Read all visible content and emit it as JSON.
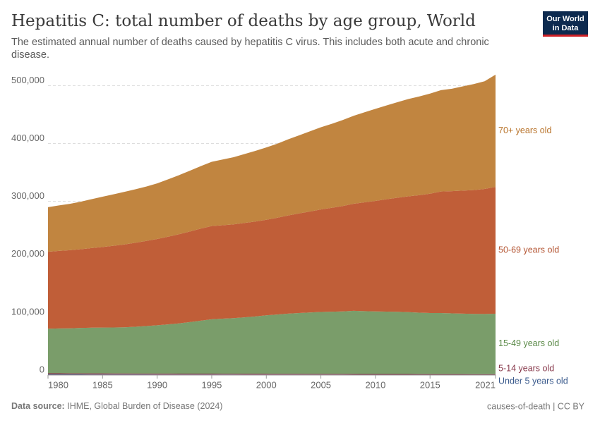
{
  "chart_data": {
    "type": "stacked-area",
    "title": "Hepatitis C: total number of deaths by age group, World",
    "subtitle": "The estimated annual number of deaths caused by hepatitis C virus. This includes both acute and chronic disease.",
    "logo": [
      "Our World",
      "in Data"
    ],
    "source_label": "Data source:",
    "source": "IHME, Global Burden of Disease (2024)",
    "license": "causes-of-death | CC BY",
    "x": [
      1980,
      1981,
      1982,
      1983,
      1984,
      1985,
      1986,
      1987,
      1988,
      1989,
      1990,
      1991,
      1992,
      1993,
      1994,
      1995,
      1996,
      1997,
      1998,
      1999,
      2000,
      2001,
      2002,
      2003,
      2004,
      2005,
      2006,
      2007,
      2008,
      2009,
      2010,
      2011,
      2012,
      2013,
      2014,
      2015,
      2016,
      2017,
      2018,
      2019,
      2020,
      2021
    ],
    "xlim": [
      1980,
      2021
    ],
    "xticks": [
      1980,
      1985,
      1990,
      1995,
      2000,
      2005,
      2010,
      2015,
      2021
    ],
    "ylim": [
      0,
      520000
    ],
    "yticks": [
      0,
      {
        "value": 100000,
        "label": "100,000"
      },
      {
        "value": 200000,
        "label": "200,000"
      },
      {
        "value": 300000,
        "label": "300,000"
      },
      {
        "value": 400000,
        "label": "400,000"
      },
      {
        "value": 500000,
        "label": "500,000"
      }
    ],
    "grid": true,
    "series": [
      {
        "name": "Under 5 years old",
        "color": "#4c6a9c",
        "label_color": "#3a5a8c",
        "values": [
          1200,
          1200,
          1150,
          1150,
          1100,
          1100,
          1050,
          1050,
          1000,
          1000,
          950,
          950,
          900,
          900,
          900,
          850,
          850,
          850,
          800,
          800,
          800,
          750,
          750,
          750,
          700,
          700,
          700,
          700,
          650,
          650,
          650,
          650,
          600,
          600,
          600,
          600,
          550,
          550,
          550,
          550,
          500,
          500
        ]
      },
      {
        "name": "5-14 years old",
        "color": "#8a3a52",
        "label_color": "#883a4c",
        "values": [
          1800,
          1800,
          1780,
          1760,
          1740,
          1720,
          1700,
          1680,
          1660,
          1640,
          1620,
          1600,
          1580,
          1560,
          1540,
          1520,
          1500,
          1480,
          1460,
          1440,
          1420,
          1400,
          1380,
          1360,
          1340,
          1320,
          1300,
          1280,
          1260,
          1240,
          1220,
          1200,
          1180,
          1160,
          1140,
          1120,
          1100,
          1080,
          1060,
          1040,
          1020,
          1000
        ]
      },
      {
        "name": "15-49 years old",
        "color": "#7a9d6a",
        "label_color": "#5b8a48",
        "values": [
          77000,
          77500,
          77800,
          78500,
          79000,
          79300,
          79500,
          79800,
          80800,
          82000,
          83500,
          85000,
          86800,
          89000,
          91500,
          94000,
          95000,
          96000,
          97500,
          99000,
          101000,
          102500,
          104000,
          105000,
          106000,
          107000,
          107500,
          108000,
          109000,
          108500,
          108000,
          107800,
          107500,
          107000,
          106000,
          105500,
          105500,
          105000,
          104500,
          104000,
          104000,
          104500
        ]
      },
      {
        "name": "50-69 years old",
        "color": "#c05e38",
        "label_color": "#b45533",
        "values": [
          133000,
          134000,
          135000,
          136000,
          137500,
          139000,
          141000,
          143000,
          145000,
          147000,
          149000,
          151500,
          154000,
          156500,
          159000,
          161000,
          161500,
          162000,
          163000,
          164000,
          165000,
          167000,
          169500,
          172000,
          174500,
          177000,
          179500,
          182000,
          185000,
          188000,
          191000,
          194000,
          197000,
          200000,
          203000,
          206000,
          210000,
          211000,
          212500,
          214000,
          216000,
          219000
        ]
      },
      {
        "name": "70+ years old",
        "color": "#c18540",
        "label_color": "#b8732a",
        "values": [
          77000,
          78500,
          80000,
          82000,
          84500,
          87000,
          89000,
          91000,
          92500,
          94000,
          96000,
          99000,
          102000,
          105000,
          108000,
          111000,
          113500,
          116000,
          119000,
          122000,
          125000,
          128000,
          131500,
          135000,
          138500,
          142000,
          145000,
          148500,
          152000,
          155500,
          159000,
          162000,
          165000,
          168000,
          170500,
          173000,
          175000,
          177000,
          180000,
          183000,
          186000,
          194000
        ]
      }
    ]
  }
}
